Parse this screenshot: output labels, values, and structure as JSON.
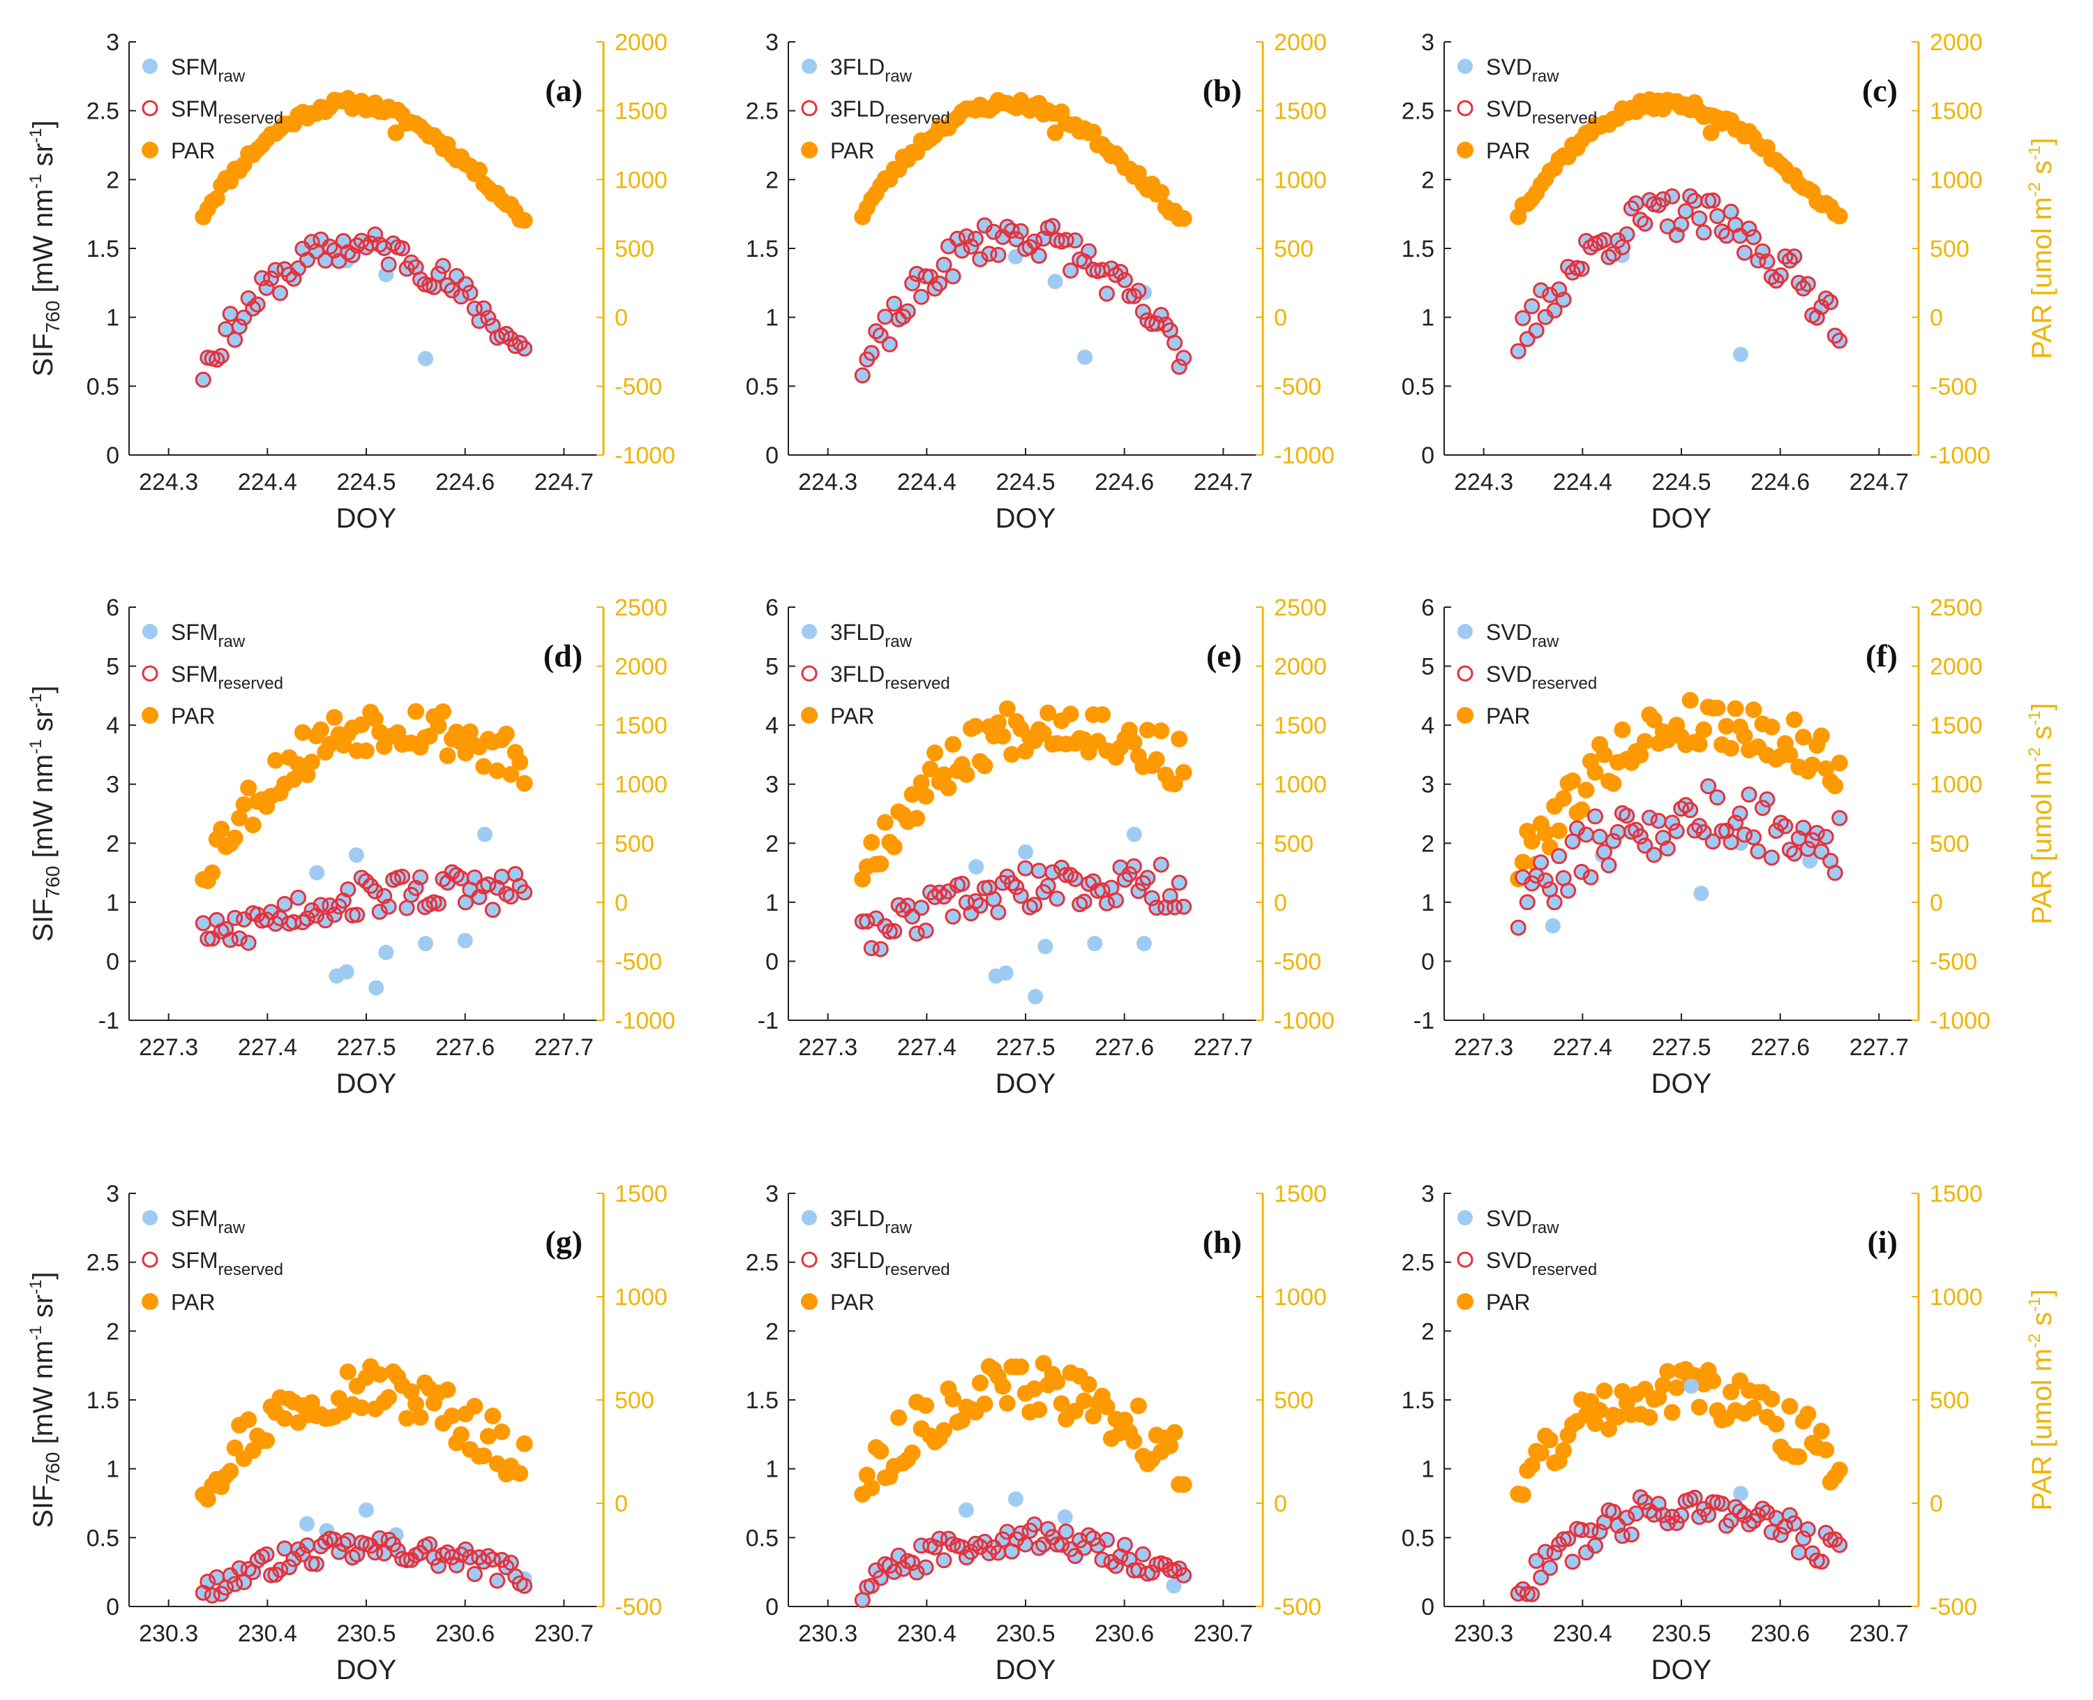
{
  "figure": {
    "series_names": {
      "raw": "raw",
      "reserved": "reserved",
      "par": "PAR"
    },
    "colors": {
      "raw": "#9ecbf2",
      "reserved_edge": "#e8303a",
      "par": "#ff9900",
      "right_axis": "#f0b400",
      "axis": "#222222"
    },
    "left_axis_title": {
      "main": "SIF",
      "sub": "760",
      "unit": "[mW nm",
      "e1": "-1",
      "unit2": " sr",
      "e2": "-1",
      "close": "]"
    },
    "right_axis_title": {
      "main": "PAR [umol m",
      "e1": "-2",
      "mid": " s",
      "e2": "-1",
      "close": "]"
    }
  },
  "chart_data": [
    {
      "id": "a",
      "label": "(a)",
      "method": "SFM",
      "type": "scatter",
      "xlabel": "DOY",
      "xlim": [
        224.26,
        224.74
      ],
      "xticks": [
        "224.3",
        "224.4",
        "224.5",
        "224.6",
        "224.7"
      ],
      "ylim": [
        0,
        3
      ],
      "yticks": [
        "0",
        "0.5",
        "1",
        "1.5",
        "2",
        "2.5",
        "3"
      ],
      "y2lim": [
        -1000,
        2000
      ],
      "y2ticks": [
        "-1000",
        "-500",
        "0",
        "500",
        "1000",
        "1500",
        "2000"
      ],
      "show_left_title": true,
      "show_right_title": false,
      "legend_pos": "top-left",
      "raw_outliers": [
        [
          224.48,
          1.41
        ],
        [
          224.52,
          1.31
        ],
        [
          224.56,
          0.7
        ],
        [
          224.45,
          1.52
        ]
      ],
      "sif_amp": 0.0,
      "sif_peak": 1.52,
      "sif_ends": [
        0.62,
        0.75
      ],
      "sif_noise": 0.12,
      "par_peak": 1550,
      "par_ends": [
        750,
        700
      ],
      "par_noise": 40,
      "par_dips": [
        [
          224.53,
          1340
        ]
      ],
      "seed": 11
    },
    {
      "id": "b",
      "label": "(b)",
      "method": "3FLD",
      "type": "scatter",
      "xlabel": "DOY",
      "xlim": [
        224.26,
        224.74
      ],
      "xticks": [
        "224.3",
        "224.4",
        "224.5",
        "224.6",
        "224.7"
      ],
      "ylim": [
        0,
        3
      ],
      "yticks": [
        "0",
        "0.5",
        "1",
        "1.5",
        "2",
        "2.5",
        "3"
      ],
      "y2lim": [
        -1000,
        2000
      ],
      "y2ticks": [
        "-1000",
        "-500",
        "0",
        "500",
        "1000",
        "1500",
        "2000"
      ],
      "show_left_title": false,
      "show_right_title": false,
      "legend_pos": "top-left",
      "raw_outliers": [
        [
          224.49,
          1.44
        ],
        [
          224.53,
          1.26
        ],
        [
          224.56,
          0.71
        ],
        [
          224.62,
          1.18
        ]
      ],
      "sif_amp": 0.0,
      "sif_peak": 1.6,
      "sif_ends": [
        0.6,
        0.73
      ],
      "sif_noise": 0.14,
      "par_peak": 1550,
      "par_ends": [
        750,
        700
      ],
      "par_noise": 40,
      "par_dips": [
        [
          224.53,
          1340
        ]
      ],
      "seed": 23
    },
    {
      "id": "c",
      "label": "(c)",
      "method": "SVD",
      "type": "scatter",
      "xlabel": "DOY",
      "xlim": [
        224.26,
        224.74
      ],
      "xticks": [
        "224.3",
        "224.4",
        "224.5",
        "224.6",
        "224.7"
      ],
      "ylim": [
        0,
        3
      ],
      "yticks": [
        "0",
        "0.5",
        "1",
        "1.5",
        "2",
        "2.5",
        "3"
      ],
      "y2lim": [
        -1000,
        2000
      ],
      "y2ticks": [
        "-1000",
        "-500",
        "0",
        "500",
        "1000",
        "1500",
        "2000"
      ],
      "show_left_title": false,
      "show_right_title": true,
      "legend_pos": "top-left",
      "raw_outliers": [
        [
          224.56,
          0.73
        ],
        [
          224.44,
          1.45
        ]
      ],
      "sif_amp": 0.0,
      "sif_peak": 1.75,
      "sif_ends": [
        0.8,
        0.98
      ],
      "sif_noise": 0.16,
      "par_peak": 1550,
      "par_ends": [
        750,
        700
      ],
      "par_noise": 40,
      "par_dips": [
        [
          224.53,
          1340
        ]
      ],
      "seed": 37
    },
    {
      "id": "d",
      "label": "(d)",
      "method": "SFM",
      "type": "scatter",
      "xlabel": "DOY",
      "xlim": [
        227.26,
        227.74
      ],
      "xticks": [
        "227.3",
        "227.4",
        "227.5",
        "227.6",
        "227.7"
      ],
      "ylim": [
        -1,
        6
      ],
      "yticks": [
        "-1",
        "0",
        "1",
        "2",
        "3",
        "4",
        "5",
        "6"
      ],
      "y2lim": [
        -1000,
        2500
      ],
      "y2ticks": [
        "-1000",
        "-500",
        "0",
        "500",
        "1000",
        "1500",
        "2000",
        "2500"
      ],
      "show_left_title": true,
      "show_right_title": false,
      "legend_pos": "top-left",
      "raw_outliers": [
        [
          227.47,
          -0.25
        ],
        [
          227.48,
          -0.18
        ],
        [
          227.51,
          -0.45
        ],
        [
          227.52,
          0.15
        ],
        [
          227.62,
          2.15
        ],
        [
          227.45,
          1.5
        ],
        [
          227.49,
          1.8
        ],
        [
          227.56,
          0.3
        ],
        [
          227.6,
          0.35
        ]
      ],
      "sif_amp": 0.0,
      "sif_peak": 1.1,
      "sif_ends": [
        0.3,
        1.2
      ],
      "sif_noise": 0.35,
      "par_peak": 1500,
      "par_ends": [
        300,
        1150
      ],
      "par_noise": 220,
      "par_dips": [],
      "seed": 53
    },
    {
      "id": "e",
      "label": "(e)",
      "method": "3FLD",
      "type": "scatter",
      "xlabel": "DOY",
      "xlim": [
        227.26,
        227.74
      ],
      "xticks": [
        "227.3",
        "227.4",
        "227.5",
        "227.6",
        "227.7"
      ],
      "ylim": [
        -1,
        6
      ],
      "yticks": [
        "-1",
        "0",
        "1",
        "2",
        "3",
        "4",
        "5",
        "6"
      ],
      "y2lim": [
        -1000,
        2500
      ],
      "y2ticks": [
        "-1000",
        "-500",
        "0",
        "500",
        "1000",
        "1500",
        "2000",
        "2500"
      ],
      "show_left_title": false,
      "show_right_title": false,
      "legend_pos": "top-left",
      "raw_outliers": [
        [
          227.47,
          -0.25
        ],
        [
          227.48,
          -0.2
        ],
        [
          227.51,
          -0.6
        ],
        [
          227.52,
          0.25
        ],
        [
          227.61,
          2.15
        ],
        [
          227.45,
          1.6
        ],
        [
          227.5,
          1.85
        ],
        [
          227.57,
          0.3
        ],
        [
          227.62,
          0.3
        ]
      ],
      "sif_amp": 0.0,
      "sif_peak": 1.2,
      "sif_ends": [
        0.35,
        1.25
      ],
      "sif_noise": 0.38,
      "par_peak": 1500,
      "par_ends": [
        300,
        1150
      ],
      "par_noise": 220,
      "par_dips": [],
      "seed": 67
    },
    {
      "id": "f",
      "label": "(f)",
      "method": "SVD",
      "type": "scatter",
      "xlabel": "DOY",
      "xlim": [
        227.26,
        227.74
      ],
      "xticks": [
        "227.3",
        "227.4",
        "227.5",
        "227.6",
        "227.7"
      ],
      "ylim": [
        -1,
        6
      ],
      "yticks": [
        "-1",
        "0",
        "1",
        "2",
        "3",
        "4",
        "5",
        "6"
      ],
      "y2lim": [
        -1000,
        2500
      ],
      "y2ticks": [
        "-1000",
        "-500",
        "0",
        "500",
        "1000",
        "1500",
        "2000",
        "2500"
      ],
      "show_left_title": false,
      "show_right_title": true,
      "legend_pos": "top-left",
      "raw_outliers": [
        [
          227.37,
          0.6
        ],
        [
          227.52,
          1.15
        ],
        [
          227.56,
          2.0
        ],
        [
          227.62,
          1.9
        ],
        [
          227.42,
          1.8
        ],
        [
          227.63,
          1.7
        ]
      ],
      "sif_amp": 0.0,
      "sif_peak": 2.4,
      "sif_ends": [
        0.95,
        2.0
      ],
      "sif_noise": 0.55,
      "par_peak": 1500,
      "par_ends": [
        300,
        1150
      ],
      "par_noise": 220,
      "par_dips": [],
      "seed": 79
    },
    {
      "id": "g",
      "label": "(g)",
      "method": "SFM",
      "type": "scatter",
      "xlabel": "DOY",
      "xlim": [
        230.26,
        230.74
      ],
      "xticks": [
        "230.3",
        "230.4",
        "230.5",
        "230.6",
        "230.7"
      ],
      "ylim": [
        0,
        3
      ],
      "yticks": [
        "0",
        "0.5",
        "1",
        "1.5",
        "2",
        "2.5",
        "3"
      ],
      "y2lim": [
        -500,
        1500
      ],
      "y2ticks": [
        "-500",
        "0",
        "500",
        "1000",
        "1500"
      ],
      "show_left_title": true,
      "show_right_title": false,
      "legend_pos": "top-left",
      "raw_outliers": [
        [
          230.44,
          0.6
        ],
        [
          230.5,
          0.7
        ],
        [
          230.53,
          0.52
        ],
        [
          230.66,
          0.2
        ],
        [
          230.46,
          0.55
        ]
      ],
      "sif_amp": 0.0,
      "sif_peak": 0.42,
      "sif_ends": [
        0.1,
        0.22
      ],
      "sif_noise": 0.09,
      "par_peak": 560,
      "par_ends": [
        100,
        200
      ],
      "par_noise": 130,
      "par_dips": [],
      "seed": 97
    },
    {
      "id": "h",
      "label": "(h)",
      "method": "3FLD",
      "type": "scatter",
      "xlabel": "DOY",
      "xlim": [
        230.26,
        230.74
      ],
      "xticks": [
        "230.3",
        "230.4",
        "230.5",
        "230.6",
        "230.7"
      ],
      "ylim": [
        0,
        3
      ],
      "yticks": [
        "0",
        "0.5",
        "1",
        "1.5",
        "2",
        "2.5",
        "3"
      ],
      "y2lim": [
        -500,
        1500
      ],
      "y2ticks": [
        "-500",
        "0",
        "500",
        "1000",
        "1500"
      ],
      "show_left_title": false,
      "show_right_title": false,
      "legend_pos": "top-left",
      "raw_outliers": [
        [
          230.44,
          0.7
        ],
        [
          230.49,
          0.78
        ],
        [
          230.54,
          0.65
        ],
        [
          230.65,
          0.15
        ],
        [
          230.37,
          0.35
        ]
      ],
      "sif_amp": 0.0,
      "sif_peak": 0.5,
      "sif_ends": [
        0.12,
        0.22
      ],
      "sif_noise": 0.1,
      "par_peak": 560,
      "par_ends": [
        100,
        200
      ],
      "par_noise": 130,
      "par_dips": [],
      "seed": 113
    },
    {
      "id": "i",
      "label": "(i)",
      "method": "SVD",
      "type": "scatter",
      "xlabel": "DOY",
      "xlim": [
        230.26,
        230.74
      ],
      "xticks": [
        "230.3",
        "230.4",
        "230.5",
        "230.6",
        "230.7"
      ],
      "ylim": [
        0,
        3
      ],
      "yticks": [
        "0",
        "0.5",
        "1",
        "1.5",
        "2",
        "2.5",
        "3"
      ],
      "y2lim": [
        -500,
        1500
      ],
      "y2ticks": [
        "-500",
        "0",
        "500",
        "1000",
        "1500"
      ],
      "show_left_title": false,
      "show_right_title": true,
      "legend_pos": "top-left",
      "raw_outliers": [
        [
          230.51,
          1.6
        ],
        [
          230.56,
          0.82
        ]
      ],
      "sif_amp": 0.0,
      "sif_peak": 0.72,
      "sif_ends": [
        0.1,
        0.38
      ],
      "sif_noise": 0.13,
      "par_peak": 560,
      "par_ends": [
        100,
        200
      ],
      "par_noise": 130,
      "par_dips": [],
      "seed": 131
    }
  ]
}
